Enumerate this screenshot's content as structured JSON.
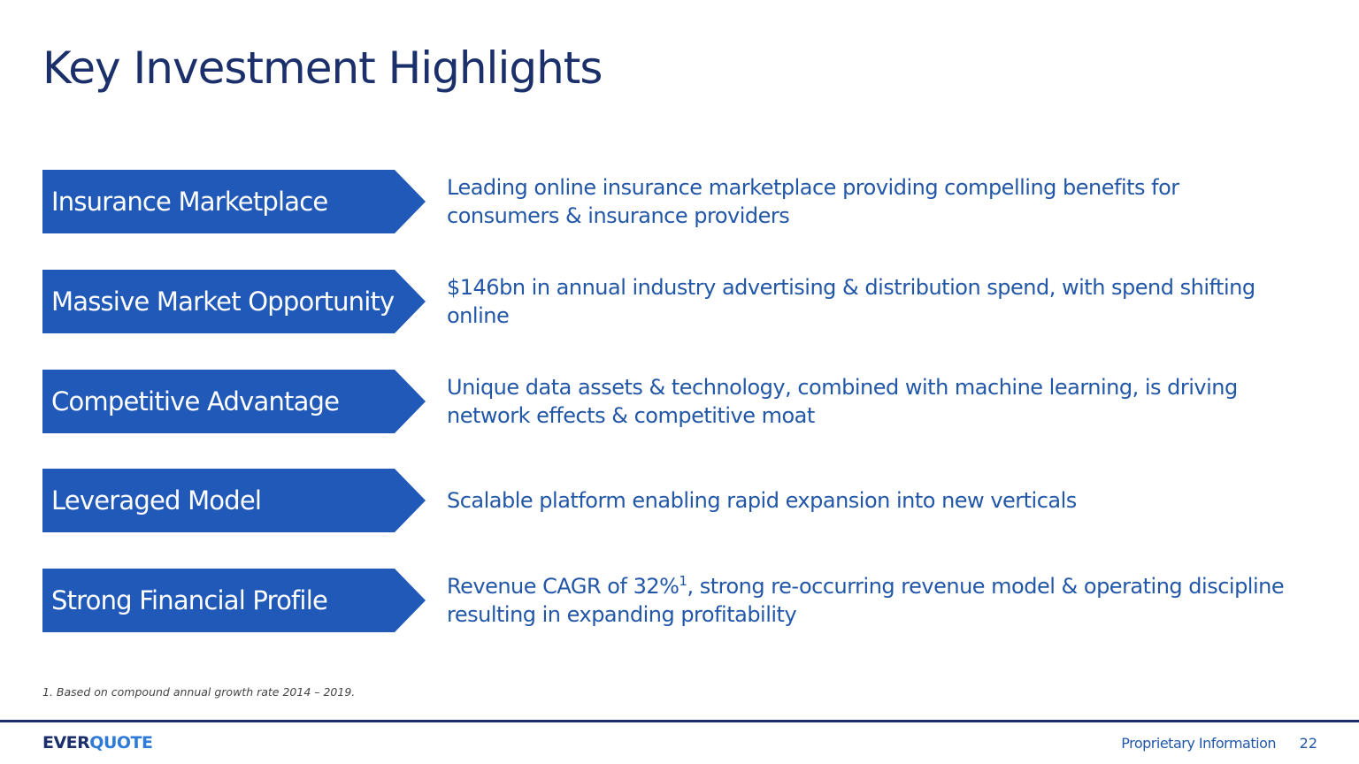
{
  "header": {
    "title": "Key Investment Highlights"
  },
  "highlights": [
    {
      "label": "Insurance Marketplace",
      "description": {
        "text": "Leading online insurance marketplace providing compelling benefits for consumers & insurance providers"
      }
    },
    {
      "label": "Massive Market Opportunity",
      "description": {
        "text": "$146bn in annual industry advertising & distribution spend, with spend shifting online"
      }
    },
    {
      "label": "Competitive Advantage",
      "description": {
        "text": "Unique data assets & technology, combined with machine learning, is driving network effects & competitive moat"
      }
    },
    {
      "label": "Leveraged Model",
      "description": {
        "text": "Scalable platform enabling rapid expansion into new verticals"
      }
    },
    {
      "label": "Strong Financial Profile",
      "description": {
        "text": "Revenue CAGR of 32%",
        "superscript": "1",
        "text_after": ", strong re-occurring revenue model & operating discipline resulting in expanding profitability"
      }
    }
  ],
  "footnote": "1. Based on compound annual growth rate 2014 – 2019.",
  "footer": {
    "logo_part1": "EVER",
    "logo_part2": "QUOTE",
    "notice": "Proprietary Information",
    "page_number": "22"
  }
}
